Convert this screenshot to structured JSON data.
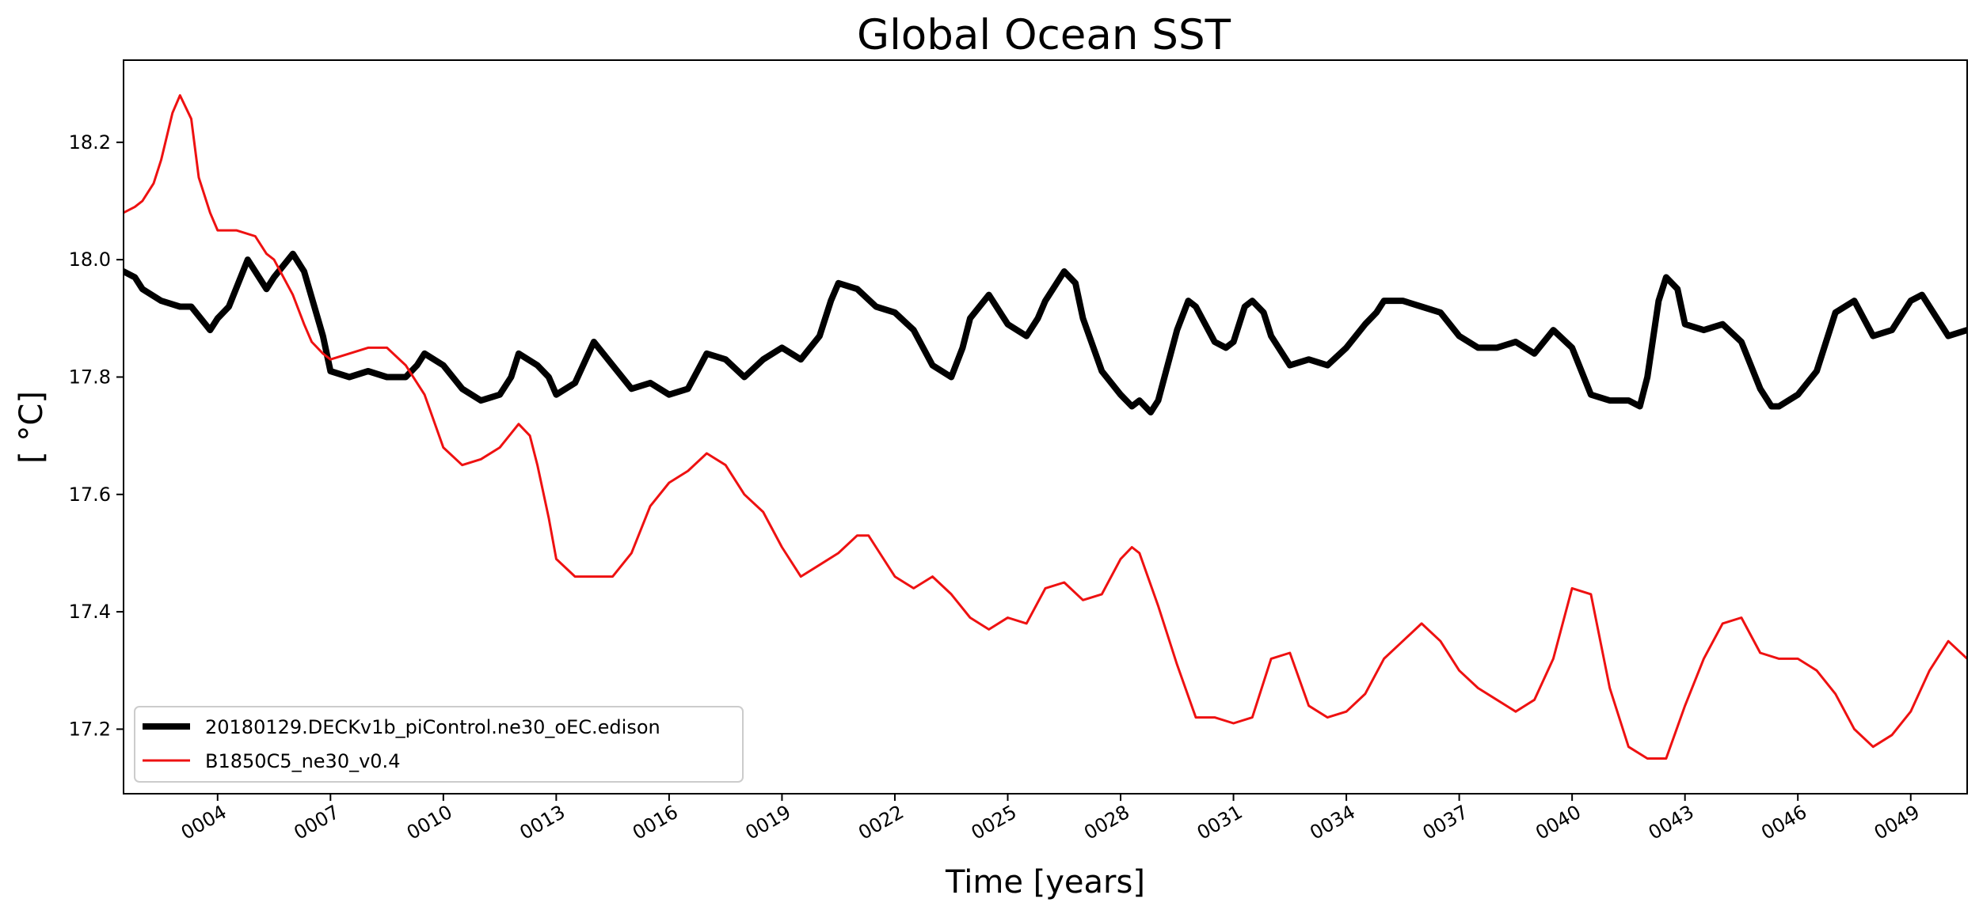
{
  "chart_data": {
    "type": "line",
    "title": "Global Ocean SST",
    "xlabel": "Time [years]",
    "ylabel": "[ °C]",
    "xlim": [
      1.5,
      50.5
    ],
    "ylim": [
      17.09,
      18.34
    ],
    "xticks": [
      {
        "value": 4,
        "label": "0004"
      },
      {
        "value": 7,
        "label": "0007"
      },
      {
        "value": 10,
        "label": "0010"
      },
      {
        "value": 13,
        "label": "0013"
      },
      {
        "value": 16,
        "label": "0016"
      },
      {
        "value": 19,
        "label": "0019"
      },
      {
        "value": 22,
        "label": "0022"
      },
      {
        "value": 25,
        "label": "0025"
      },
      {
        "value": 28,
        "label": "0028"
      },
      {
        "value": 31,
        "label": "0031"
      },
      {
        "value": 34,
        "label": "0034"
      },
      {
        "value": 37,
        "label": "0037"
      },
      {
        "value": 40,
        "label": "0040"
      },
      {
        "value": 43,
        "label": "0043"
      },
      {
        "value": 46,
        "label": "0046"
      },
      {
        "value": 49,
        "label": "0049"
      }
    ],
    "yticks": [
      {
        "value": 17.2,
        "label": "17.2"
      },
      {
        "value": 17.4,
        "label": "17.4"
      },
      {
        "value": 17.6,
        "label": "17.6"
      },
      {
        "value": 17.8,
        "label": "17.8"
      },
      {
        "value": 18.0,
        "label": "18.0"
      },
      {
        "value": 18.2,
        "label": "18.2"
      }
    ],
    "legend_location": "lower-left",
    "series": [
      {
        "name": "20180129.DECKv1b_piControl.ne30_oEC.edison",
        "color": "#000000",
        "line_width": "thick",
        "x": [
          1.5,
          1.8,
          2.0,
          2.5,
          3.0,
          3.3,
          3.8,
          4.0,
          4.3,
          4.8,
          5.3,
          5.5,
          6.0,
          6.3,
          6.8,
          7.0,
          7.5,
          8.0,
          8.5,
          9.0,
          9.3,
          9.5,
          10.0,
          10.5,
          11.0,
          11.5,
          11.8,
          12.0,
          12.5,
          12.8,
          13.0,
          13.5,
          14.0,
          14.5,
          15.0,
          15.5,
          16.0,
          16.5,
          17.0,
          17.5,
          18.0,
          18.5,
          19.0,
          19.5,
          20.0,
          20.3,
          20.5,
          21.0,
          21.5,
          22.0,
          22.5,
          23.0,
          23.5,
          23.8,
          24.0,
          24.5,
          25.0,
          25.5,
          25.8,
          26.0,
          26.5,
          26.8,
          27.0,
          27.5,
          28.0,
          28.3,
          28.5,
          28.8,
          29.0,
          29.5,
          29.8,
          30.0,
          30.5,
          30.8,
          31.0,
          31.3,
          31.5,
          31.8,
          32.0,
          32.5,
          33.0,
          33.5,
          34.0,
          34.5,
          34.8,
          35.0,
          35.5,
          36.0,
          36.5,
          37.0,
          37.5,
          38.0,
          38.5,
          39.0,
          39.5,
          40.0,
          40.5,
          41.0,
          41.5,
          41.8,
          42.0,
          42.3,
          42.5,
          42.8,
          43.0,
          43.5,
          44.0,
          44.5,
          45.0,
          45.3,
          45.5,
          46.0,
          46.5,
          47.0,
          47.5,
          48.0,
          48.5,
          49.0,
          49.3,
          49.5,
          50.0,
          50.5
        ],
        "y": [
          17.98,
          17.97,
          17.95,
          17.93,
          17.92,
          17.92,
          17.88,
          17.9,
          17.92,
          18.0,
          17.95,
          17.97,
          18.01,
          17.98,
          17.87,
          17.81,
          17.8,
          17.81,
          17.8,
          17.8,
          17.82,
          17.84,
          17.82,
          17.78,
          17.76,
          17.77,
          17.8,
          17.84,
          17.82,
          17.8,
          17.77,
          17.79,
          17.86,
          17.82,
          17.78,
          17.79,
          17.77,
          17.78,
          17.84,
          17.83,
          17.8,
          17.83,
          17.85,
          17.83,
          17.87,
          17.93,
          17.96,
          17.95,
          17.92,
          17.91,
          17.88,
          17.82,
          17.8,
          17.85,
          17.9,
          17.94,
          17.89,
          17.87,
          17.9,
          17.93,
          17.98,
          17.96,
          17.9,
          17.81,
          17.77,
          17.75,
          17.76,
          17.74,
          17.76,
          17.88,
          17.93,
          17.92,
          17.86,
          17.85,
          17.86,
          17.92,
          17.93,
          17.91,
          17.87,
          17.82,
          17.83,
          17.82,
          17.85,
          17.89,
          17.91,
          17.93,
          17.93,
          17.92,
          17.91,
          17.87,
          17.85,
          17.85,
          17.86,
          17.84,
          17.88,
          17.85,
          17.77,
          17.76,
          17.76,
          17.75,
          17.8,
          17.93,
          17.97,
          17.95,
          17.89,
          17.88,
          17.89,
          17.86,
          17.78,
          17.75,
          17.75,
          17.77,
          17.81,
          17.91,
          17.93,
          17.87,
          17.88,
          17.93,
          17.94,
          17.92,
          17.87,
          17.88
        ],
        "legend_swatch": "thick black line"
      },
      {
        "name": "B1850C5_ne30_v0.4",
        "color": "#ee1111",
        "line_width": "thin",
        "x": [
          1.5,
          1.8,
          2.0,
          2.3,
          2.5,
          2.8,
          3.0,
          3.3,
          3.5,
          3.8,
          4.0,
          4.3,
          4.5,
          5.0,
          5.3,
          5.5,
          6.0,
          6.3,
          6.5,
          6.8,
          7.0,
          7.5,
          8.0,
          8.5,
          9.0,
          9.5,
          10.0,
          10.5,
          11.0,
          11.5,
          12.0,
          12.3,
          12.5,
          12.8,
          13.0,
          13.5,
          14.0,
          14.5,
          15.0,
          15.5,
          16.0,
          16.5,
          17.0,
          17.5,
          18.0,
          18.5,
          19.0,
          19.5,
          20.0,
          20.5,
          21.0,
          21.3,
          21.5,
          22.0,
          22.5,
          23.0,
          23.5,
          24.0,
          24.5,
          25.0,
          25.5,
          26.0,
          26.5,
          27.0,
          27.5,
          28.0,
          28.3,
          28.5,
          29.0,
          29.5,
          30.0,
          30.5,
          31.0,
          31.5,
          32.0,
          32.5,
          33.0,
          33.5,
          34.0,
          34.5,
          35.0,
          35.5,
          36.0,
          36.5,
          37.0,
          37.5,
          38.0,
          38.5,
          39.0,
          39.5,
          40.0,
          40.5,
          41.0,
          41.5,
          42.0,
          42.5,
          43.0,
          43.5,
          44.0,
          44.5,
          45.0,
          45.5,
          46.0,
          46.5,
          47.0,
          47.5,
          48.0,
          48.5,
          49.0,
          49.5,
          50.0,
          50.5
        ],
        "y": [
          18.08,
          18.09,
          18.1,
          18.13,
          18.17,
          18.25,
          18.28,
          18.24,
          18.14,
          18.08,
          18.05,
          18.05,
          18.05,
          18.04,
          18.01,
          18.0,
          17.94,
          17.89,
          17.86,
          17.84,
          17.83,
          17.84,
          17.85,
          17.85,
          17.82,
          17.77,
          17.68,
          17.65,
          17.66,
          17.68,
          17.72,
          17.7,
          17.65,
          17.56,
          17.49,
          17.46,
          17.46,
          17.46,
          17.5,
          17.58,
          17.62,
          17.64,
          17.67,
          17.65,
          17.6,
          17.57,
          17.51,
          17.46,
          17.48,
          17.5,
          17.53,
          17.53,
          17.51,
          17.46,
          17.44,
          17.46,
          17.43,
          17.39,
          17.37,
          17.39,
          17.38,
          17.44,
          17.45,
          17.42,
          17.43,
          17.49,
          17.51,
          17.5,
          17.41,
          17.31,
          17.22,
          17.22,
          17.21,
          17.22,
          17.32,
          17.33,
          17.24,
          17.22,
          17.23,
          17.26,
          17.32,
          17.35,
          17.38,
          17.35,
          17.3,
          17.27,
          17.25,
          17.23,
          17.25,
          17.32,
          17.44,
          17.43,
          17.27,
          17.17,
          17.15,
          17.15,
          17.24,
          17.32,
          17.38,
          17.39,
          17.33,
          17.32,
          17.32,
          17.3,
          17.26,
          17.2,
          17.17,
          17.19,
          17.23,
          17.3,
          17.35,
          17.32
        ],
        "legend_swatch": "thin red line"
      }
    ]
  }
}
